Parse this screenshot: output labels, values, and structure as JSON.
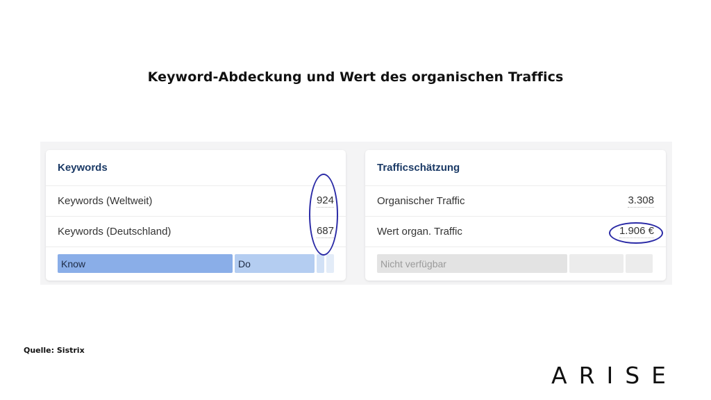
{
  "title": "Keyword-Abdeckung und Wert des organischen Traffics",
  "keywords_panel": {
    "heading": "Keywords",
    "rows": [
      {
        "label": "Keywords (Weltweit)",
        "value": "924"
      },
      {
        "label": "Keywords (Deutschland)",
        "value": "687"
      }
    ],
    "intent_bar": [
      {
        "label": "Know",
        "color": "#8aaee8"
      },
      {
        "label": "Do",
        "color": "#b4cdf1"
      },
      {
        "label": "",
        "color": "#d2e1f6"
      },
      {
        "label": "",
        "color": "#e3ecf8"
      }
    ]
  },
  "traffic_panel": {
    "heading": "Trafficschätzung",
    "rows": [
      {
        "label": "Organischer Traffic",
        "value": "3.308"
      },
      {
        "label": "Wert organ. Traffic",
        "value": "1.906 €"
      }
    ],
    "bar": [
      {
        "label": "Nicht verfügbar",
        "color": "#e3e3e3"
      },
      {
        "label": "",
        "color": "#ececec"
      },
      {
        "label": "",
        "color": "#ececec"
      }
    ]
  },
  "annotation_color": "#2a2aa6",
  "source": "Quelle: Sistrix",
  "logo": "ARISE"
}
